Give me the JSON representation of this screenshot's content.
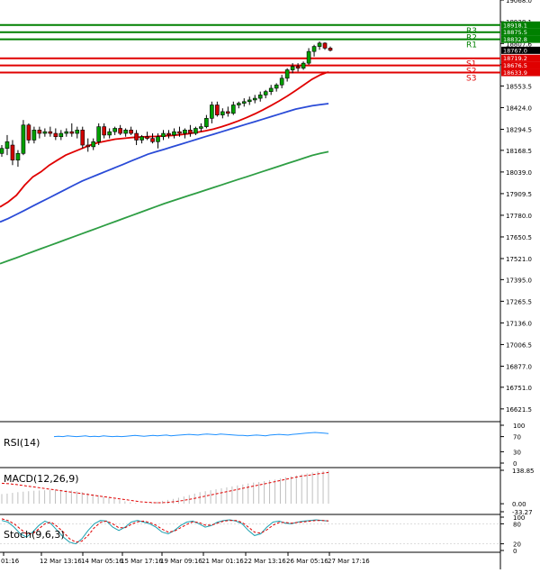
{
  "chart_data": [
    {
      "type": "candlestick",
      "pane": "main",
      "ylim": [
        16556,
        19068
      ],
      "y_ticks": [
        "19068.0",
        "18938.1",
        "18807.6",
        "18681.1",
        "18553.5",
        "18424.0",
        "18294.5",
        "18168.5",
        "18039.0",
        "17909.5",
        "17780.0",
        "17650.5",
        "17521.0",
        "17395.0",
        "17265.5",
        "17136.0",
        "17006.5",
        "16877.0",
        "16751.0",
        "16621.5"
      ],
      "x_ticks": [
        "01:16",
        "12 Mar 13:16",
        "14 Mar 05:16",
        "15 Mar 17:16",
        "19 Mar 09:16",
        "21 Mar 01:16",
        "22 Mar 13:16",
        "26 Mar 05:16",
        "27 Mar 17:16"
      ],
      "levels": [
        {
          "name": "R3",
          "value": 18918.1,
          "value_text": "18918.1",
          "color": "#008000"
        },
        {
          "name": "R2",
          "value": 18875.5,
          "value_text": "18875.5",
          "color": "#008000"
        },
        {
          "name": "R1",
          "value": 18832.8,
          "value_text": "18832.8",
          "color": "#008000"
        },
        {
          "name": "S1",
          "value": 18719.2,
          "value_text": "18719.2",
          "color": "#e00000"
        },
        {
          "name": "S2",
          "value": 18676.5,
          "value_text": "18676.5",
          "color": "#e00000"
        },
        {
          "name": "S3",
          "value": 18633.9,
          "value_text": "18633.9",
          "color": "#e00000"
        }
      ],
      "current_price": {
        "value": 18767.0,
        "value_text": "18767.0",
        "color": "#000000"
      },
      "candles": [
        [
          18150,
          18200,
          18130,
          18180
        ],
        [
          18180,
          18260,
          18140,
          18220
        ],
        [
          18200,
          18230,
          18080,
          18110
        ],
        [
          18110,
          18170,
          18070,
          18150
        ],
        [
          18150,
          18350,
          18140,
          18320
        ],
        [
          18320,
          18330,
          18210,
          18230
        ],
        [
          18230,
          18310,
          18210,
          18290
        ],
        [
          18290,
          18310,
          18240,
          18270
        ],
        [
          18270,
          18300,
          18250,
          18280
        ],
        [
          18280,
          18310,
          18250,
          18270
        ],
        [
          18270,
          18300,
          18230,
          18250
        ],
        [
          18250,
          18290,
          18230,
          18270
        ],
        [
          18270,
          18300,
          18250,
          18280
        ],
        [
          18280,
          18330,
          18250,
          18270
        ],
        [
          18270,
          18310,
          18240,
          18290
        ],
        [
          18290,
          18310,
          18180,
          18200
        ],
        [
          18200,
          18240,
          18160,
          18190
        ],
        [
          18190,
          18240,
          18170,
          18220
        ],
        [
          18220,
          18330,
          18200,
          18310
        ],
        [
          18310,
          18330,
          18240,
          18260
        ],
        [
          18260,
          18300,
          18240,
          18280
        ],
        [
          18280,
          18310,
          18260,
          18300
        ],
        [
          18300,
          18320,
          18260,
          18270
        ],
        [
          18270,
          18300,
          18250,
          18290
        ],
        [
          18290,
          18310,
          18260,
          18270
        ],
        [
          18270,
          18290,
          18200,
          18230
        ],
        [
          18230,
          18260,
          18210,
          18250
        ],
        [
          18250,
          18280,
          18230,
          18240
        ],
        [
          18240,
          18270,
          18210,
          18220
        ],
        [
          18220,
          18270,
          18180,
          18250
        ],
        [
          18250,
          18290,
          18230,
          18270
        ],
        [
          18270,
          18290,
          18240,
          18260
        ],
        [
          18260,
          18300,
          18240,
          18280
        ],
        [
          18280,
          18310,
          18250,
          18270
        ],
        [
          18270,
          18300,
          18240,
          18290
        ],
        [
          18290,
          18320,
          18250,
          18270
        ],
        [
          18270,
          18310,
          18260,
          18300
        ],
        [
          18300,
          18330,
          18280,
          18310
        ],
        [
          18310,
          18380,
          18300,
          18360
        ],
        [
          18360,
          18460,
          18330,
          18440
        ],
        [
          18440,
          18460,
          18370,
          18380
        ],
        [
          18380,
          18420,
          18360,
          18400
        ],
        [
          18400,
          18430,
          18370,
          18390
        ],
        [
          18390,
          18460,
          18380,
          18440
        ],
        [
          18440,
          18460,
          18420,
          18450
        ],
        [
          18450,
          18480,
          18430,
          18460
        ],
        [
          18460,
          18490,
          18440,
          18470
        ],
        [
          18470,
          18500,
          18450,
          18480
        ],
        [
          18480,
          18520,
          18460,
          18500
        ],
        [
          18500,
          18530,
          18480,
          18520
        ],
        [
          18520,
          18560,
          18500,
          18540
        ],
        [
          18540,
          18570,
          18520,
          18560
        ],
        [
          18560,
          18620,
          18540,
          18600
        ],
        [
          18600,
          18660,
          18580,
          18650
        ],
        [
          18650,
          18690,
          18630,
          18670
        ],
        [
          18670,
          18690,
          18640,
          18660
        ],
        [
          18660,
          18700,
          18650,
          18690
        ],
        [
          18690,
          18780,
          18680,
          18760
        ],
        [
          18760,
          18800,
          18730,
          18790
        ],
        [
          18790,
          18820,
          18770,
          18810
        ],
        [
          18810,
          18815,
          18770,
          18780
        ],
        [
          18780,
          18790,
          18760,
          18767
        ]
      ],
      "series": [
        {
          "name": "",
          "color": "#e00000",
          "values": [
            17830,
            17860,
            17900,
            17960,
            18010,
            18040,
            18080,
            18110,
            18140,
            18160,
            18180,
            18200,
            18215,
            18225,
            18235,
            18240,
            18245,
            18248,
            18250,
            18252,
            18255,
            18258,
            18262,
            18268,
            18276,
            18285,
            18296,
            18310,
            18326,
            18344,
            18364,
            18386,
            18410,
            18436,
            18464,
            18494,
            18526,
            18560,
            18594,
            18620,
            18638
          ]
        },
        {
          "name": "",
          "color": "#2a4bd7",
          "values": [
            17740,
            17760,
            17785,
            17810,
            17835,
            17860,
            17885,
            17910,
            17935,
            17960,
            17985,
            18005,
            18025,
            18045,
            18065,
            18085,
            18105,
            18125,
            18145,
            18160,
            18175,
            18190,
            18205,
            18220,
            18235,
            18250,
            18265,
            18280,
            18295,
            18310,
            18325,
            18340,
            18355,
            18370,
            18385,
            18400,
            18415,
            18425,
            18435,
            18442,
            18448
          ]
        },
        {
          "name": "",
          "color": "#2e9e44",
          "values": [
            17490,
            17508,
            17526,
            17544,
            17562,
            17580,
            17598,
            17616,
            17634,
            17652,
            17670,
            17688,
            17706,
            17724,
            17742,
            17760,
            17778,
            17796,
            17814,
            17832,
            17850,
            17866,
            17882,
            17898,
            17914,
            17930,
            17946,
            17962,
            17978,
            17994,
            18010,
            18026,
            18042,
            18058,
            18074,
            18090,
            18106,
            18122,
            18138,
            18150,
            18160
          ]
        }
      ]
    },
    {
      "type": "line",
      "pane": "rsi",
      "title": "RSI(14)",
      "ylim": [
        0,
        100
      ],
      "y_ticks": [
        "100",
        "70",
        "30",
        "0"
      ],
      "series": [
        {
          "name": "",
          "color": "#1e90ff",
          "values": [
            70,
            71,
            70,
            72,
            71,
            70,
            71,
            72,
            70,
            71,
            70,
            72,
            71,
            70,
            71,
            70,
            71,
            72,
            73,
            72,
            71,
            72,
            73,
            72,
            73,
            74,
            72,
            73,
            74,
            75,
            76,
            75,
            74,
            76,
            77,
            76,
            75,
            77,
            76,
            75,
            74,
            73,
            73,
            72,
            73,
            74,
            73,
            72,
            74,
            75,
            76,
            75,
            74,
            76,
            77,
            78,
            79,
            80,
            81,
            80,
            79,
            78
          ]
        }
      ]
    },
    {
      "type": "bar",
      "pane": "macd",
      "title": "MACD(12,26,9)",
      "ylim": [
        -33.27,
        138.85
      ],
      "y_ticks": [
        "138.85",
        "0.00",
        "-33.27"
      ],
      "bars": [
        40,
        42,
        45,
        48,
        50,
        52,
        54,
        55,
        56,
        57,
        58,
        58,
        57,
        55,
        52,
        48,
        44,
        40,
        36,
        30,
        25,
        20,
        15,
        10,
        6,
        3,
        0,
        2,
        5,
        8,
        12,
        16,
        20,
        25,
        30,
        36,
        42,
        48,
        52,
        56,
        60,
        64,
        68,
        72,
        76,
        80,
        84,
        88,
        90,
        94,
        98,
        100,
        105,
        110,
        114,
        118,
        122,
        126,
        130,
        134,
        136,
        138
      ],
      "signal": {
        "color": "#e00000",
        "values": [
          85,
          83,
          80,
          76,
          72,
          68,
          64,
          60,
          56,
          52,
          48,
          44,
          40,
          36,
          32,
          28,
          24,
          20,
          16,
          12,
          8,
          6,
          4,
          4,
          6,
          9,
          13,
          18,
          24,
          30,
          36,
          42,
          48,
          54,
          60,
          66,
          72,
          78,
          84,
          90,
          96,
          102,
          108,
          114,
          118,
          122,
          126,
          130
        ]
      }
    },
    {
      "type": "line",
      "pane": "stoch",
      "title": "Stoch(9,6,3)",
      "ylim": [
        0,
        100
      ],
      "y_ticks": [
        "100",
        "80",
        "20",
        "0"
      ],
      "series": [
        {
          "name": "",
          "color": "#1aa0b0",
          "values": [
            90,
            85,
            70,
            50,
            40,
            55,
            75,
            88,
            80,
            60,
            40,
            25,
            20,
            35,
            60,
            80,
            90,
            88,
            70,
            60,
            70,
            85,
            90,
            85,
            80,
            70,
            55,
            50,
            60,
            75,
            85,
            88,
            80,
            70,
            75,
            85,
            90,
            92,
            88,
            80,
            60,
            45,
            50,
            70,
            85,
            88,
            82,
            80,
            85,
            88,
            90,
            92,
            90,
            88
          ]
        },
        {
          "name": "",
          "color": "#e00000",
          "values": [
            95,
            90,
            80,
            65,
            50,
            50,
            65,
            80,
            85,
            72,
            55,
            35,
            25,
            28,
            45,
            68,
            84,
            88,
            80,
            68,
            68,
            78,
            86,
            88,
            84,
            76,
            64,
            55,
            58,
            68,
            78,
            86,
            84,
            76,
            76,
            82,
            88,
            90,
            90,
            84,
            70,
            55,
            52,
            62,
            76,
            84,
            84,
            82,
            84,
            86,
            88,
            90,
            90,
            89
          ]
        }
      ]
    }
  ]
}
